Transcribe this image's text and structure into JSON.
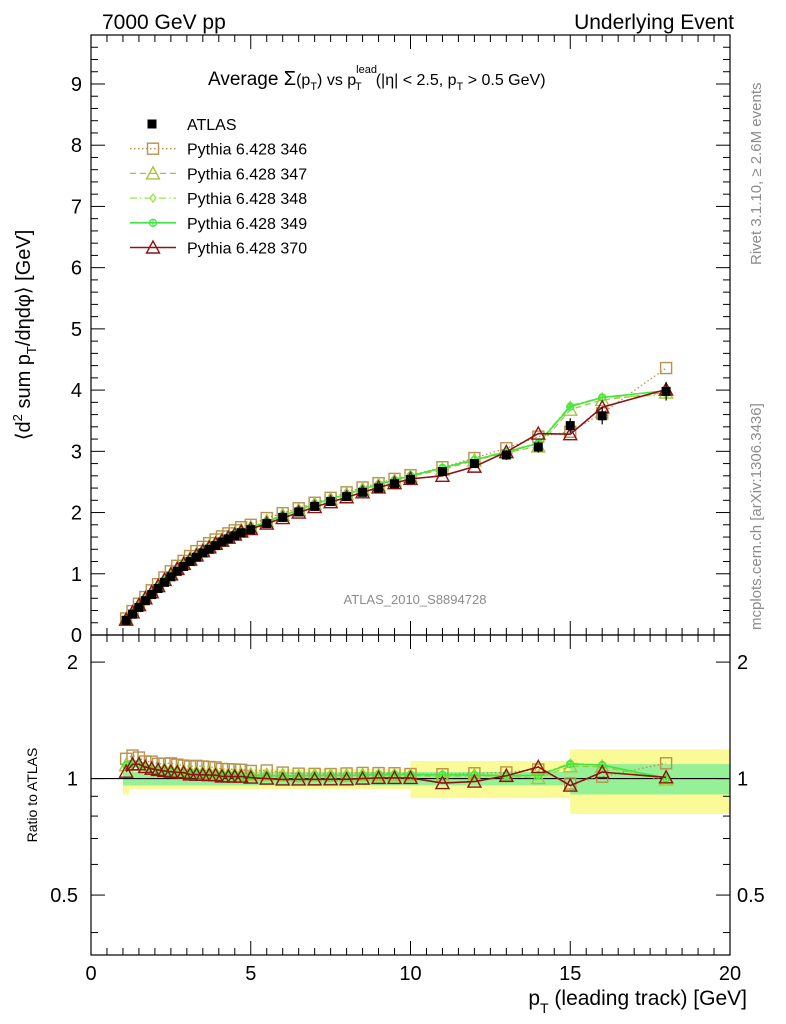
{
  "header": {
    "left": "7000 GeV pp",
    "right": "Underlying Event"
  },
  "side": {
    "rivet": "Rivet 3.1.10, ≥ 2.6M events",
    "mcplots": "mcplots.cern.ch [arXiv:1306.3436]"
  },
  "chart_data": [
    {
      "type": "scatter",
      "panel": "main",
      "title": "Average Σ(p_T) vs p_T^lead (|η| < 2.5, p_T > 0.5 GeV)",
      "xlabel": "p_T (leading track) [GeV]",
      "ylabel": "⟨d² sum p_T/dηdφ⟩ [GeV]",
      "watermark": "ATLAS_2010_S8894728",
      "xlim": [
        0,
        20
      ],
      "ylim": [
        0,
        9.8
      ],
      "xticks": [
        0,
        5,
        10,
        15,
        20
      ],
      "yticks": [
        0,
        1,
        2,
        3,
        4,
        5,
        6,
        7,
        8,
        9
      ],
      "legend_position": "top-left",
      "x": [
        1.1,
        1.3,
        1.5,
        1.7,
        1.9,
        2.1,
        2.3,
        2.5,
        2.7,
        2.9,
        3.1,
        3.3,
        3.5,
        3.7,
        3.9,
        4.1,
        4.3,
        4.5,
        4.7,
        5.0,
        5.5,
        6.0,
        6.5,
        7.0,
        7.5,
        8.0,
        8.5,
        9.0,
        9.5,
        10.0,
        11.0,
        12.0,
        13.0,
        14.0,
        15.0,
        16.0,
        18.0
      ],
      "series": [
        {
          "name": "ATLAS",
          "style": "data",
          "color": "#000000",
          "x": [
            1.1,
            1.3,
            1.5,
            1.7,
            1.9,
            2.1,
            2.3,
            2.5,
            2.7,
            2.9,
            3.1,
            3.3,
            3.5,
            3.7,
            3.9,
            4.1,
            4.3,
            4.5,
            4.7,
            5.0,
            5.5,
            6.0,
            6.5,
            7.0,
            7.5,
            8.0,
            8.5,
            9.0,
            9.5,
            10.0,
            11.0,
            12.0,
            13.0,
            14.0,
            15.0,
            16.0,
            18.0
          ],
          "values": [
            0.24,
            0.34,
            0.45,
            0.56,
            0.66,
            0.76,
            0.86,
            0.95,
            1.04,
            1.12,
            1.2,
            1.27,
            1.34,
            1.4,
            1.46,
            1.52,
            1.57,
            1.62,
            1.67,
            1.72,
            1.82,
            1.92,
            2.01,
            2.1,
            2.18,
            2.26,
            2.33,
            2.4,
            2.47,
            2.54,
            2.67,
            2.8,
            2.94,
            3.07,
            3.42,
            3.58,
            3.98
          ]
        },
        {
          "name": "Pythia 6.428 346",
          "style": "dotted",
          "marker": "square",
          "color": "#b8924e",
          "values": [
            0.27,
            0.39,
            0.51,
            0.62,
            0.73,
            0.83,
            0.94,
            1.04,
            1.13,
            1.21,
            1.29,
            1.37,
            1.44,
            1.5,
            1.56,
            1.61,
            1.66,
            1.71,
            1.76,
            1.8,
            1.91,
            1.99,
            2.07,
            2.16,
            2.24,
            2.33,
            2.41,
            2.48,
            2.55,
            2.61,
            2.74,
            2.89,
            3.05,
            3.24,
            3.32,
            3.62,
            4.36
          ]
        },
        {
          "name": "Pythia 6.428 347",
          "style": "dashed",
          "marker": "triangle",
          "color": "#a6c43c",
          "values": [
            0.26,
            0.37,
            0.49,
            0.6,
            0.7,
            0.8,
            0.91,
            1.0,
            1.09,
            1.17,
            1.25,
            1.32,
            1.39,
            1.45,
            1.51,
            1.56,
            1.61,
            1.66,
            1.71,
            1.76,
            1.86,
            1.96,
            2.04,
            2.14,
            2.22,
            2.3,
            2.38,
            2.45,
            2.52,
            2.59,
            2.7,
            2.85,
            2.98,
            3.08,
            3.68,
            3.84,
            3.96
          ]
        },
        {
          "name": "Pythia 6.428 348",
          "style": "dashdot",
          "marker": "diamond",
          "color": "#9ae645",
          "values": [
            0.26,
            0.37,
            0.49,
            0.6,
            0.7,
            0.8,
            0.9,
            0.99,
            1.08,
            1.16,
            1.24,
            1.31,
            1.38,
            1.44,
            1.5,
            1.55,
            1.6,
            1.65,
            1.7,
            1.75,
            1.85,
            1.95,
            2.04,
            2.14,
            2.22,
            2.3,
            2.38,
            2.46,
            2.53,
            2.6,
            2.73,
            2.87,
            3.0,
            3.14,
            3.75,
            3.88,
            3.92
          ]
        },
        {
          "name": "Pythia 6.428 349",
          "style": "solid",
          "marker": "circle-cross",
          "color": "#3ee83e",
          "values": [
            0.26,
            0.37,
            0.49,
            0.6,
            0.7,
            0.8,
            0.9,
            0.99,
            1.08,
            1.16,
            1.24,
            1.31,
            1.38,
            1.44,
            1.5,
            1.55,
            1.6,
            1.65,
            1.7,
            1.75,
            1.85,
            1.95,
            2.04,
            2.14,
            2.22,
            2.3,
            2.38,
            2.46,
            2.53,
            2.6,
            2.73,
            2.86,
            2.99,
            3.13,
            3.73,
            3.88,
            3.99
          ]
        },
        {
          "name": "Pythia 6.428 370",
          "style": "solid",
          "marker": "triangle",
          "color": "#8c1414",
          "values": [
            0.25,
            0.37,
            0.49,
            0.6,
            0.7,
            0.8,
            0.9,
            0.99,
            1.08,
            1.16,
            1.23,
            1.3,
            1.37,
            1.43,
            1.49,
            1.54,
            1.59,
            1.64,
            1.69,
            1.73,
            1.82,
            1.91,
            2.0,
            2.09,
            2.17,
            2.25,
            2.33,
            2.41,
            2.48,
            2.55,
            2.6,
            2.75,
            2.99,
            3.29,
            3.28,
            3.72,
            4.01
          ]
        }
      ],
      "data_errors": [
        0.01,
        0.01,
        0.01,
        0.01,
        0.01,
        0.01,
        0.01,
        0.02,
        0.02,
        0.02,
        0.02,
        0.02,
        0.02,
        0.02,
        0.02,
        0.03,
        0.03,
        0.03,
        0.03,
        0.03,
        0.03,
        0.03,
        0.04,
        0.04,
        0.04,
        0.04,
        0.05,
        0.05,
        0.05,
        0.05,
        0.06,
        0.07,
        0.08,
        0.09,
        0.12,
        0.14,
        0.15
      ]
    },
    {
      "type": "scatter",
      "panel": "ratio",
      "ylabel": "Ratio to ATLAS",
      "xlim": [
        0,
        20
      ],
      "ylim": [
        0.35,
        2.35
      ],
      "yscale": "log",
      "yticks": [
        0.5,
        1,
        2
      ],
      "yticklabels": [
        "0.5",
        "1",
        "2"
      ],
      "stat_band_color": "#96f096",
      "total_band_color": "#fafa96",
      "bins": [
        {
          "lo": 1.0,
          "hi": 1.2,
          "stat": 0.04,
          "total": 0.09
        },
        {
          "lo": 1.2,
          "hi": 10.0,
          "stat": 0.04,
          "total": 0.06
        },
        {
          "lo": 10.0,
          "hi": 15.0,
          "stat": 0.04,
          "total": 0.11
        },
        {
          "lo": 15.0,
          "hi": 20.0,
          "stat": 0.09,
          "total": 0.19
        }
      ]
    }
  ]
}
